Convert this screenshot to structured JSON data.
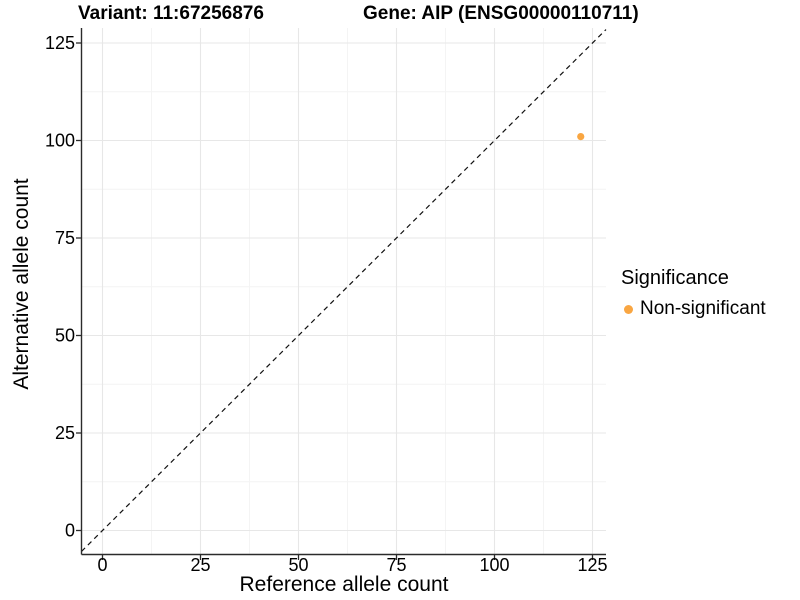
{
  "figure": {
    "titles": [
      {
        "id": "variant",
        "text": "Variant: 11:67256876"
      },
      {
        "id": "gene",
        "text": "Gene: AIP (ENSG00000110711)"
      }
    ]
  },
  "chart_data": {
    "type": "scatter",
    "title": "Variant: 11:67256876 | Gene: AIP (ENSG00000110711)",
    "xlabel": "Reference allele count",
    "ylabel": "Alternative allele count",
    "xlim": [
      0,
      125
    ],
    "ylim": [
      0,
      125
    ],
    "x_ticks": [
      0,
      25,
      50,
      75,
      100,
      125
    ],
    "y_ticks": [
      0,
      25,
      50,
      75,
      100,
      125
    ],
    "grid": {
      "major": true,
      "minor": true
    },
    "series": [
      {
        "name": "Non-significant",
        "color": "#F9A642",
        "point_radius": 3.6,
        "points": [
          {
            "x": 122,
            "y": 101
          }
        ]
      }
    ],
    "reference_line": {
      "kind": "identity y = x",
      "style": "dashed",
      "color": "#111111"
    },
    "legend": {
      "title": "Significance",
      "position": "right",
      "items": [
        {
          "label": "Non-significant",
          "color": "#F9A642"
        }
      ]
    }
  },
  "colors": {
    "background": "#FFFFFF",
    "grid_major": "#E7E7E7",
    "grid_minor": "#F3F3F3",
    "axis": "#2B2B2B",
    "text": "#000000",
    "point": "#F9A642"
  }
}
